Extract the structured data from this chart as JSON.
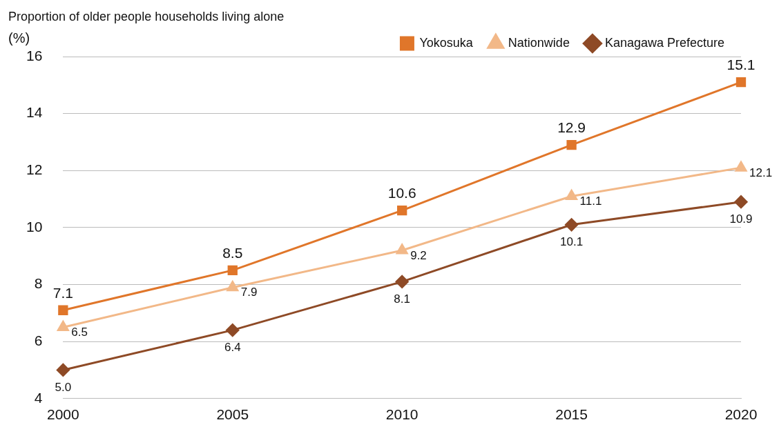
{
  "chart_data": {
    "type": "line",
    "title": "Proportion of older people households living alone",
    "ylabel": "(%)",
    "categories": [
      "2000",
      "2005",
      "2010",
      "2015",
      "2020"
    ],
    "series": [
      {
        "name": "Yokosuka",
        "color": "#e0762a",
        "marker": "square",
        "values": [
          7.1,
          8.5,
          10.6,
          12.9,
          15.1
        ],
        "value_labels": [
          "7.1",
          "8.5",
          "10.6",
          "12.9",
          "15.1"
        ]
      },
      {
        "name": "Nationwide",
        "color": "#f2b888",
        "marker": "triangle",
        "values": [
          6.5,
          7.9,
          9.2,
          11.1,
          12.1
        ],
        "value_labels": [
          "6.5",
          "7.9",
          "9.2",
          "11.1",
          "12.1"
        ]
      },
      {
        "name": "Kanagawa Prefecture",
        "color": "#8e4a26",
        "marker": "diamond",
        "values": [
          5.0,
          6.4,
          8.1,
          10.1,
          10.9
        ],
        "value_labels": [
          "5.0",
          "6.4",
          "8.1",
          "10.1",
          "10.9"
        ]
      }
    ],
    "ylim": [
      4,
      16
    ],
    "yticks": [
      4,
      6,
      8,
      10,
      12,
      14,
      16
    ],
    "grid": "y",
    "legend": "top right",
    "line_style": "solid"
  }
}
